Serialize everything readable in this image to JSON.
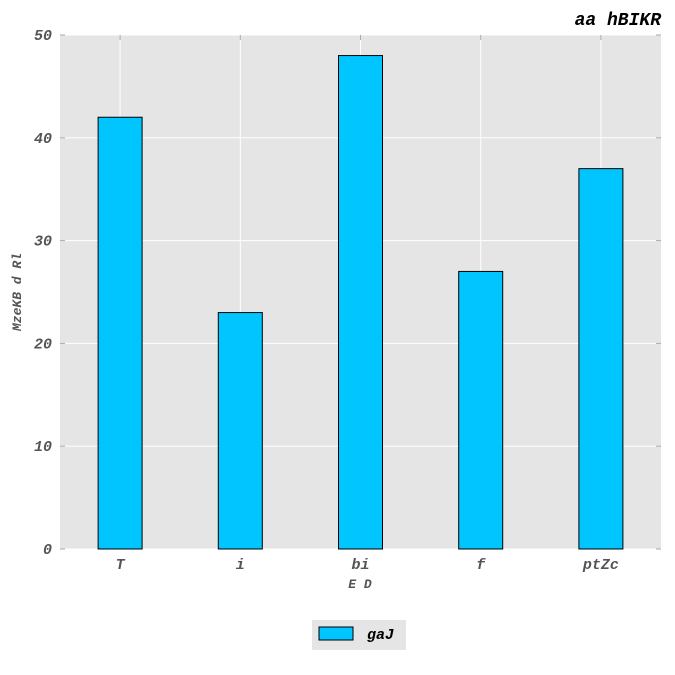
{
  "chart_data": {
    "type": "bar",
    "title": "aa hBIKR",
    "xlabel": "E D",
    "ylabel": "MzeKB d Rl",
    "categories": [
      "T",
      "i",
      "bi",
      "f",
      "ptZc"
    ],
    "series": [
      {
        "name": "gaJ",
        "values": [
          42,
          23,
          48,
          27,
          37
        ],
        "color": "#00c5ff"
      }
    ],
    "ylim": [
      0,
      50
    ],
    "yticks": [
      0,
      10,
      20,
      30,
      40,
      50
    ],
    "grid": true,
    "legend_position": "bottom-center",
    "background": "#e5e5e5",
    "grid_color": "#ffffff",
    "bar_edge_color": "#000000",
    "text_color": "#555555"
  }
}
